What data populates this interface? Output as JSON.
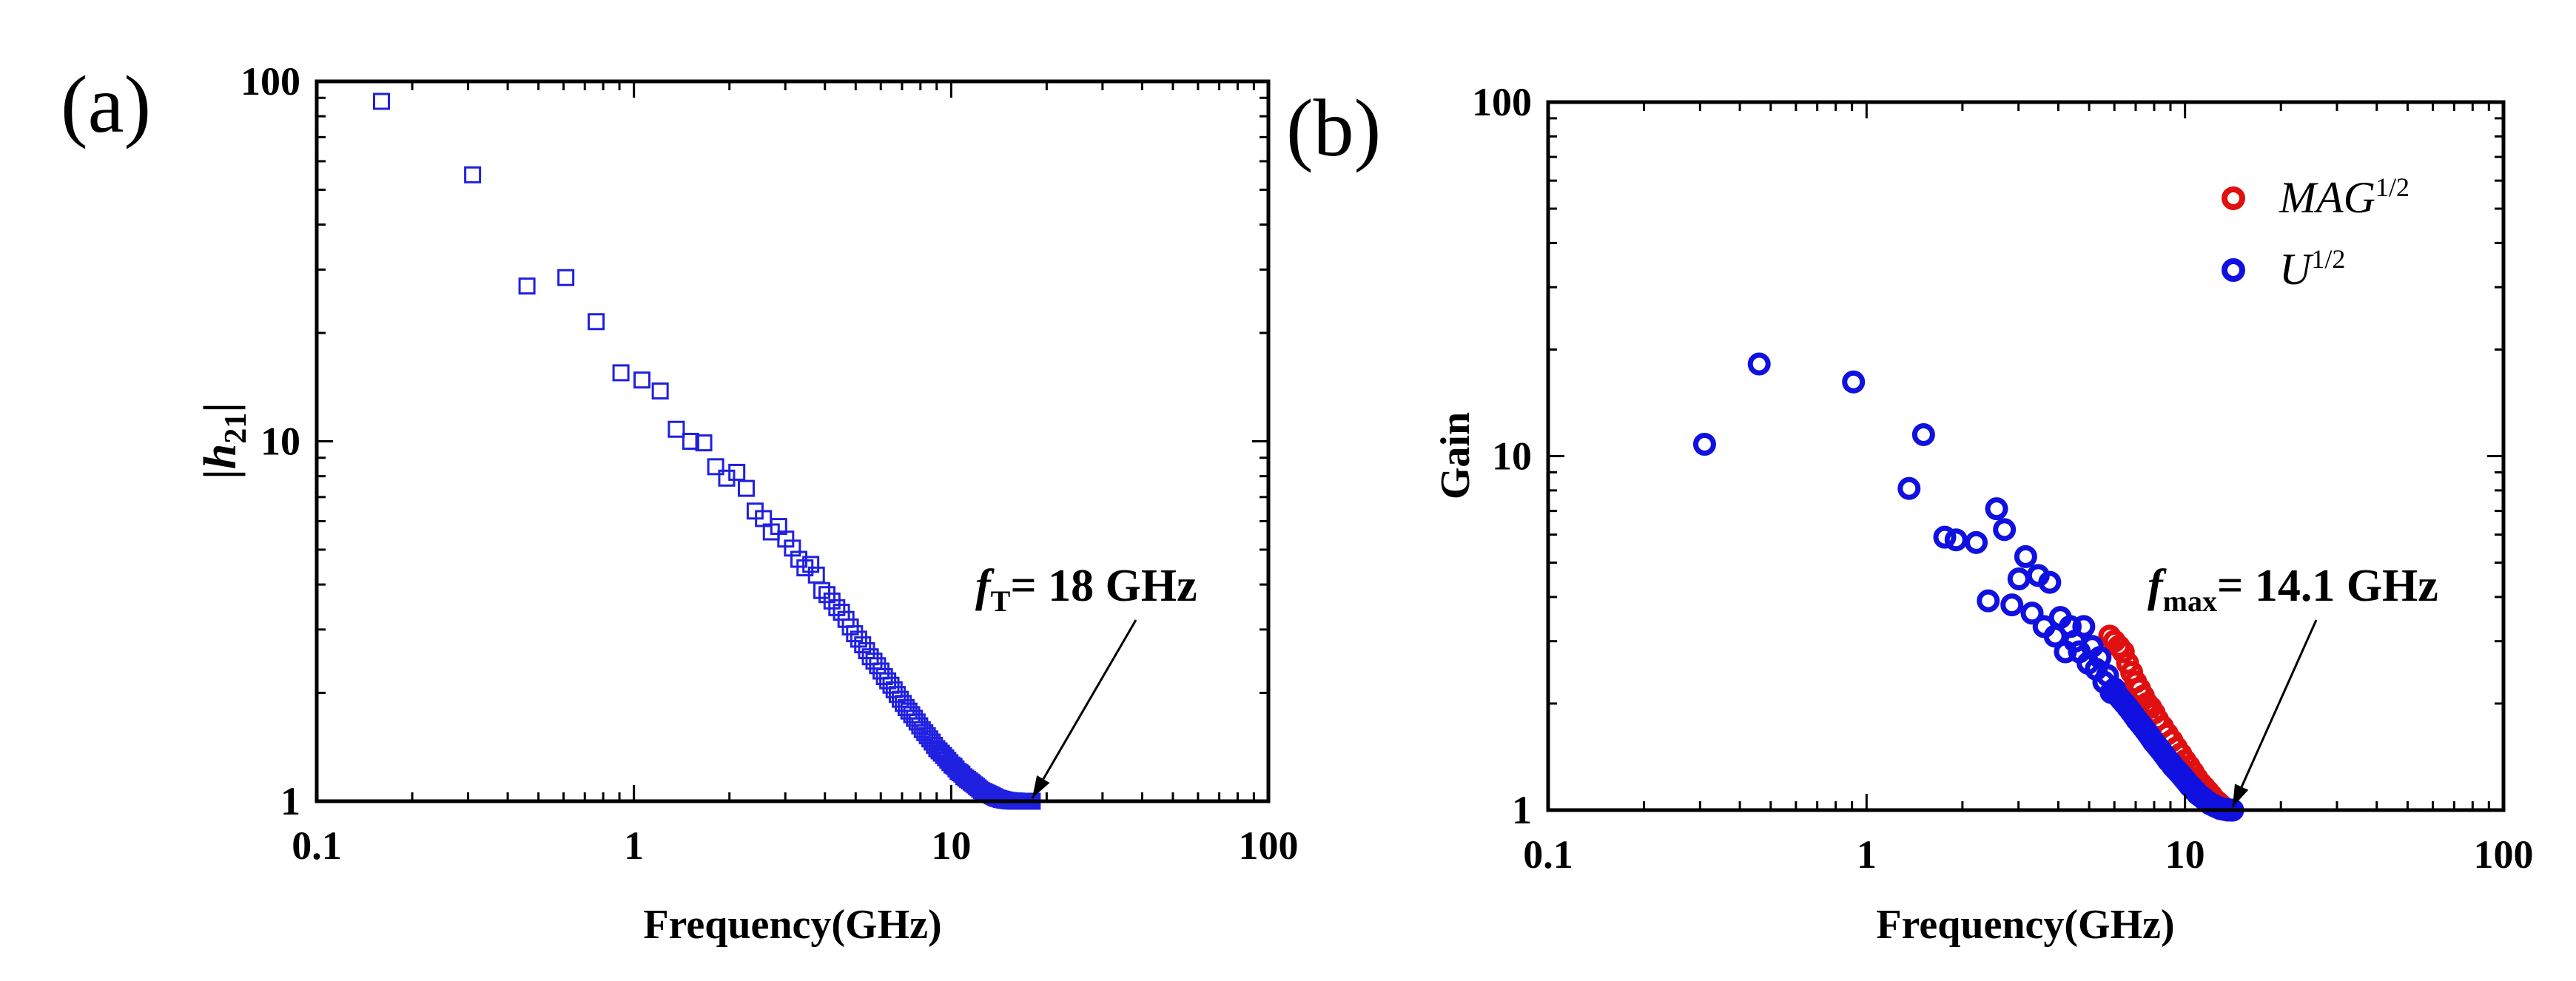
{
  "chart_data": [
    {
      "type": "scatter",
      "panel_label": "(a)",
      "xscale": "log",
      "yscale": "log",
      "xlim": [
        0.1,
        100
      ],
      "ylim": [
        1,
        100
      ],
      "x_ticks": [
        "0.1",
        "1",
        "10",
        "100"
      ],
      "y_ticks": [
        "1",
        "10",
        "100"
      ],
      "xlabel": "Frequency(GHz)",
      "ylabel": {
        "pre": "|",
        "h": "h",
        "sub": "21",
        "post": "|"
      },
      "series": [
        {
          "name": "|h21|",
          "marker": "square",
          "color": "#2020e0",
          "x": [
            0.16,
            0.31,
            0.46,
            0.61,
            0.76,
            0.91,
            1.06,
            1.21,
            1.36,
            1.51,
            1.66,
            1.81,
            1.96,
            2.11,
            2.26,
            2.41,
            2.56,
            2.71,
            2.86,
            3.01,
            3.16,
            3.31,
            3.46,
            3.61,
            3.76,
            3.91,
            4.06,
            4.21,
            4.36,
            4.51,
            4.66,
            4.81,
            4.96,
            5.11,
            5.26,
            5.41,
            5.56,
            5.71,
            5.86,
            6.01,
            6.16,
            6.31,
            6.46,
            6.61,
            6.76,
            6.91,
            7.06,
            7.21,
            7.36,
            7.51,
            7.66,
            7.81,
            7.96,
            8.11,
            8.26,
            8.41,
            8.56,
            8.71,
            8.86,
            9.01,
            9.16,
            9.31,
            9.46,
            9.61,
            9.76,
            9.91,
            10.06,
            10.21,
            10.36,
            10.51,
            10.66,
            10.81,
            10.96,
            11.11,
            11.26,
            11.41,
            11.56,
            11.71,
            11.86,
            12.01,
            12.16,
            12.31,
            12.46,
            12.61,
            12.76,
            12.91,
            13.06,
            13.21,
            13.36,
            13.51,
            13.66,
            13.81,
            13.96,
            14.11,
            14.26,
            14.41,
            14.56,
            14.71,
            14.86,
            15.01,
            15.16,
            15.31,
            15.46,
            15.61,
            15.76,
            15.91,
            16.06,
            16.21,
            16.36,
            16.51,
            16.66,
            16.81,
            16.96,
            17.11,
            17.26,
            17.41,
            17.56,
            17.71,
            17.86,
            18.01
          ],
          "y": [
            88,
            55,
            27,
            28.5,
            21.5,
            15.5,
            14.8,
            13.8,
            10.8,
            10,
            9.9,
            8.5,
            7.9,
            8.2,
            7.4,
            6.4,
            6.1,
            5.6,
            5.8,
            5.35,
            5.05,
            4.7,
            4.45,
            4.55,
            4.25,
            3.85,
            3.75,
            3.6,
            3.45,
            3.35,
            3.2,
            3.05,
            2.92,
            2.82,
            2.72,
            2.62,
            2.52,
            2.45,
            2.38,
            2.3,
            2.22,
            2.16,
            2.1,
            2.04,
            1.98,
            1.92,
            1.87,
            1.82,
            1.78,
            1.74,
            1.7,
            1.66,
            1.62,
            1.58,
            1.55,
            1.52,
            1.49,
            1.46,
            1.43,
            1.4,
            1.38,
            1.36,
            1.34,
            1.32,
            1.3,
            1.28,
            1.26,
            1.25,
            1.23,
            1.21,
            1.2,
            1.19,
            1.17,
            1.16,
            1.15,
            1.14,
            1.13,
            1.12,
            1.11,
            1.1,
            1.09,
            1.08,
            1.07,
            1.065,
            1.06,
            1.055,
            1.05,
            1.045,
            1.04,
            1.035,
            1.03,
            1.025,
            1.02,
            1.018,
            1.015,
            1.012,
            1.01,
            1.008,
            1.006,
            1.005,
            1.004,
            1.003,
            1.002,
            1.002,
            1.001,
            1.001,
            1.001,
            1.0,
            1.0,
            1.0,
            1.0,
            1.0,
            1.0,
            1.0,
            1.0,
            1.0,
            1.0,
            1.0,
            1.0,
            1.0
          ]
        }
      ],
      "annotation": {
        "pre": "f",
        "sub": "T",
        "post": "= 18 GHz",
        "x": 18,
        "y": 1
      }
    },
    {
      "type": "scatter",
      "panel_label": "(b)",
      "xscale": "log",
      "yscale": "log",
      "xlim": [
        0.1,
        100
      ],
      "ylim": [
        1,
        100
      ],
      "x_ticks": [
        "0.1",
        "1",
        "10",
        "100"
      ],
      "y_ticks": [
        "1",
        "10",
        "100"
      ],
      "xlabel": "Frequency(GHz)",
      "ylabel": "Gain",
      "legend_position": "top-right",
      "series": [
        {
          "name": "MAG^1/2",
          "label": "MAG",
          "sup": "1/2",
          "marker": "circle",
          "color": "#e01010",
          "x": [
            5.8,
            6.0,
            6.2,
            6.4,
            6.6,
            6.8,
            7.0,
            7.2,
            7.4,
            7.6,
            7.8,
            8.0,
            8.2,
            8.5,
            8.8,
            9.1,
            9.4,
            9.7,
            10.0,
            10.3,
            10.6,
            10.9,
            11.2,
            11.5,
            11.8,
            12.1,
            12.4,
            12.7,
            13.0,
            13.3,
            13.6
          ],
          "y": [
            3.1,
            3.0,
            2.9,
            2.8,
            2.6,
            2.45,
            2.3,
            2.2,
            2.1,
            2.0,
            1.95,
            1.88,
            1.8,
            1.72,
            1.64,
            1.57,
            1.5,
            1.44,
            1.38,
            1.33,
            1.28,
            1.23,
            1.19,
            1.16,
            1.13,
            1.1,
            1.07,
            1.05,
            1.03,
            1.01,
            1.0
          ]
        },
        {
          "name": "U^1/2",
          "label": "U",
          "sup": "1/2",
          "marker": "circle",
          "color": "#1010e0",
          "x": [
            0.31,
            0.46,
            0.91,
            1.36,
            1.51,
            1.76,
            1.91,
            2.21,
            2.41,
            2.56,
            2.71,
            2.86,
            3.01,
            3.16,
            3.31,
            3.46,
            3.61,
            3.76,
            3.91,
            4.06,
            4.21,
            4.36,
            4.51,
            4.66,
            4.81,
            4.96,
            5.11,
            5.26,
            5.41,
            5.56,
            5.71,
            5.86,
            6.01,
            6.16,
            6.31,
            6.46,
            6.61,
            6.76,
            6.91,
            7.06,
            7.21,
            7.36,
            7.51,
            7.66,
            7.81,
            7.96,
            8.11,
            8.26,
            8.41,
            8.56,
            8.71,
            8.86,
            9.01,
            9.16,
            9.31,
            9.46,
            9.61,
            9.76,
            9.91,
            10.06,
            10.21,
            10.36,
            10.51,
            10.66,
            10.81,
            10.96,
            11.11,
            11.26,
            11.41,
            11.56,
            11.71,
            11.86,
            12.01,
            12.16,
            12.31,
            12.46,
            12.61,
            12.76,
            12.91,
            13.06,
            13.21,
            13.36,
            13.51,
            13.66,
            13.81,
            13.96,
            14.11
          ],
          "y": [
            10.8,
            18.2,
            16.2,
            8.1,
            11.5,
            5.9,
            5.8,
            5.7,
            3.9,
            7.1,
            6.2,
            3.8,
            4.5,
            5.2,
            3.6,
            4.6,
            3.3,
            4.4,
            3.1,
            3.5,
            2.8,
            3.3,
            3.0,
            2.8,
            3.3,
            2.6,
            2.9,
            2.5,
            2.7,
            2.3,
            2.4,
            2.15,
            2.2,
            2.1,
            2.05,
            2.0,
            1.95,
            1.9,
            1.85,
            1.8,
            1.76,
            1.72,
            1.68,
            1.64,
            1.6,
            1.56,
            1.53,
            1.5,
            1.47,
            1.44,
            1.41,
            1.38,
            1.36,
            1.33,
            1.31,
            1.29,
            1.27,
            1.25,
            1.23,
            1.21,
            1.19,
            1.17,
            1.16,
            1.14,
            1.13,
            1.11,
            1.1,
            1.09,
            1.08,
            1.07,
            1.06,
            1.05,
            1.04,
            1.035,
            1.03,
            1.025,
            1.02,
            1.015,
            1.01,
            1.008,
            1.006,
            1.004,
            1.003,
            1.002,
            1.001,
            1.0,
            1.0
          ]
        }
      ],
      "annotation": {
        "pre": "f",
        "sub": "max",
        "post": "= 14.1 GHz",
        "x": 14.1,
        "y": 1
      }
    }
  ]
}
